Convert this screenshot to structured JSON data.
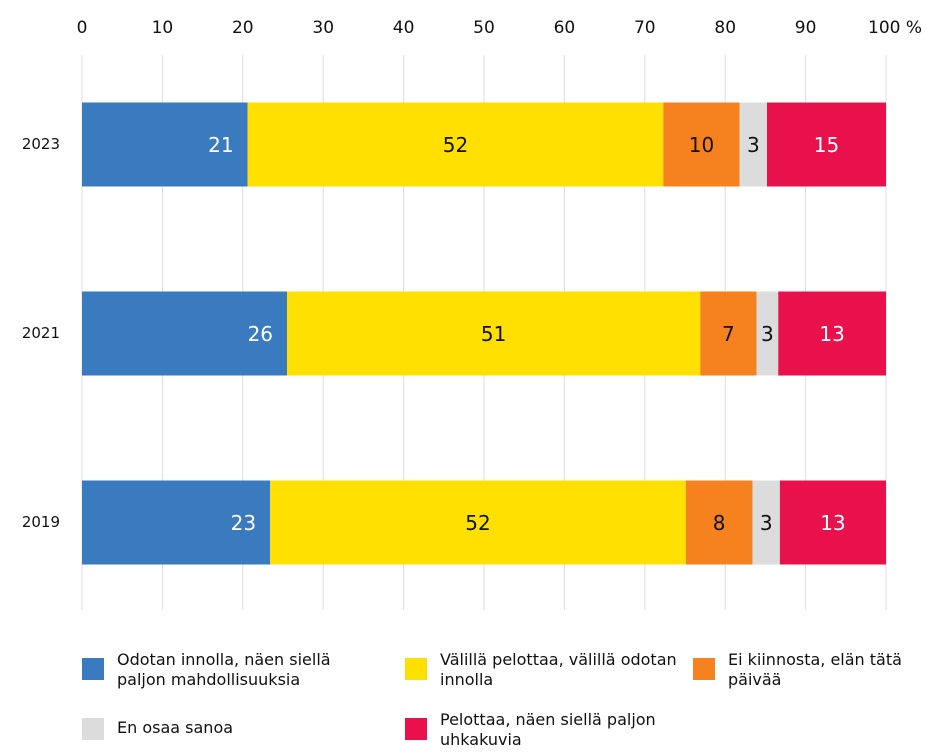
{
  "chart_data": {
    "type": "stacked_barh",
    "categories": [
      "2023",
      "2021",
      "2019"
    ],
    "xlim": [
      0,
      100
    ],
    "xticks": [
      0,
      10,
      20,
      30,
      40,
      50,
      60,
      70,
      80,
      90,
      {
        "value": 100,
        "label": "100 %"
      }
    ],
    "grid": true,
    "series": [
      {
        "name": "Odotan innolla, näen siellä paljon mahdollisuuksia",
        "color": "#3a7bbf",
        "values": [
          20.6,
          25.5,
          23.4
        ],
        "value_labels": [
          "21",
          "26",
          "23"
        ]
      },
      {
        "name": "Välillä pelottaa, välillä odotan innolla",
        "color": "#ffe000",
        "values": [
          51.7,
          51.4,
          51.7
        ],
        "value_labels": [
          "52",
          "51",
          "52"
        ]
      },
      {
        "name": "Ei kiinnosta, elän tätä päivää",
        "color": "#f6821f",
        "values": [
          9.5,
          7.0,
          8.3
        ],
        "value_labels": [
          "10",
          "7",
          "8"
        ]
      },
      {
        "name": "En osaa sanoa",
        "color": "#dcdcdc",
        "values": [
          3.4,
          2.7,
          3.4
        ],
        "value_labels": [
          "3",
          "3",
          "3"
        ]
      },
      {
        "name": "Pelottaa, näen siellä paljon uhkakuvia",
        "color": "#e8114b",
        "values": [
          14.8,
          13.4,
          13.2
        ],
        "value_labels": [
          "15",
          "13",
          "13"
        ]
      }
    ]
  }
}
